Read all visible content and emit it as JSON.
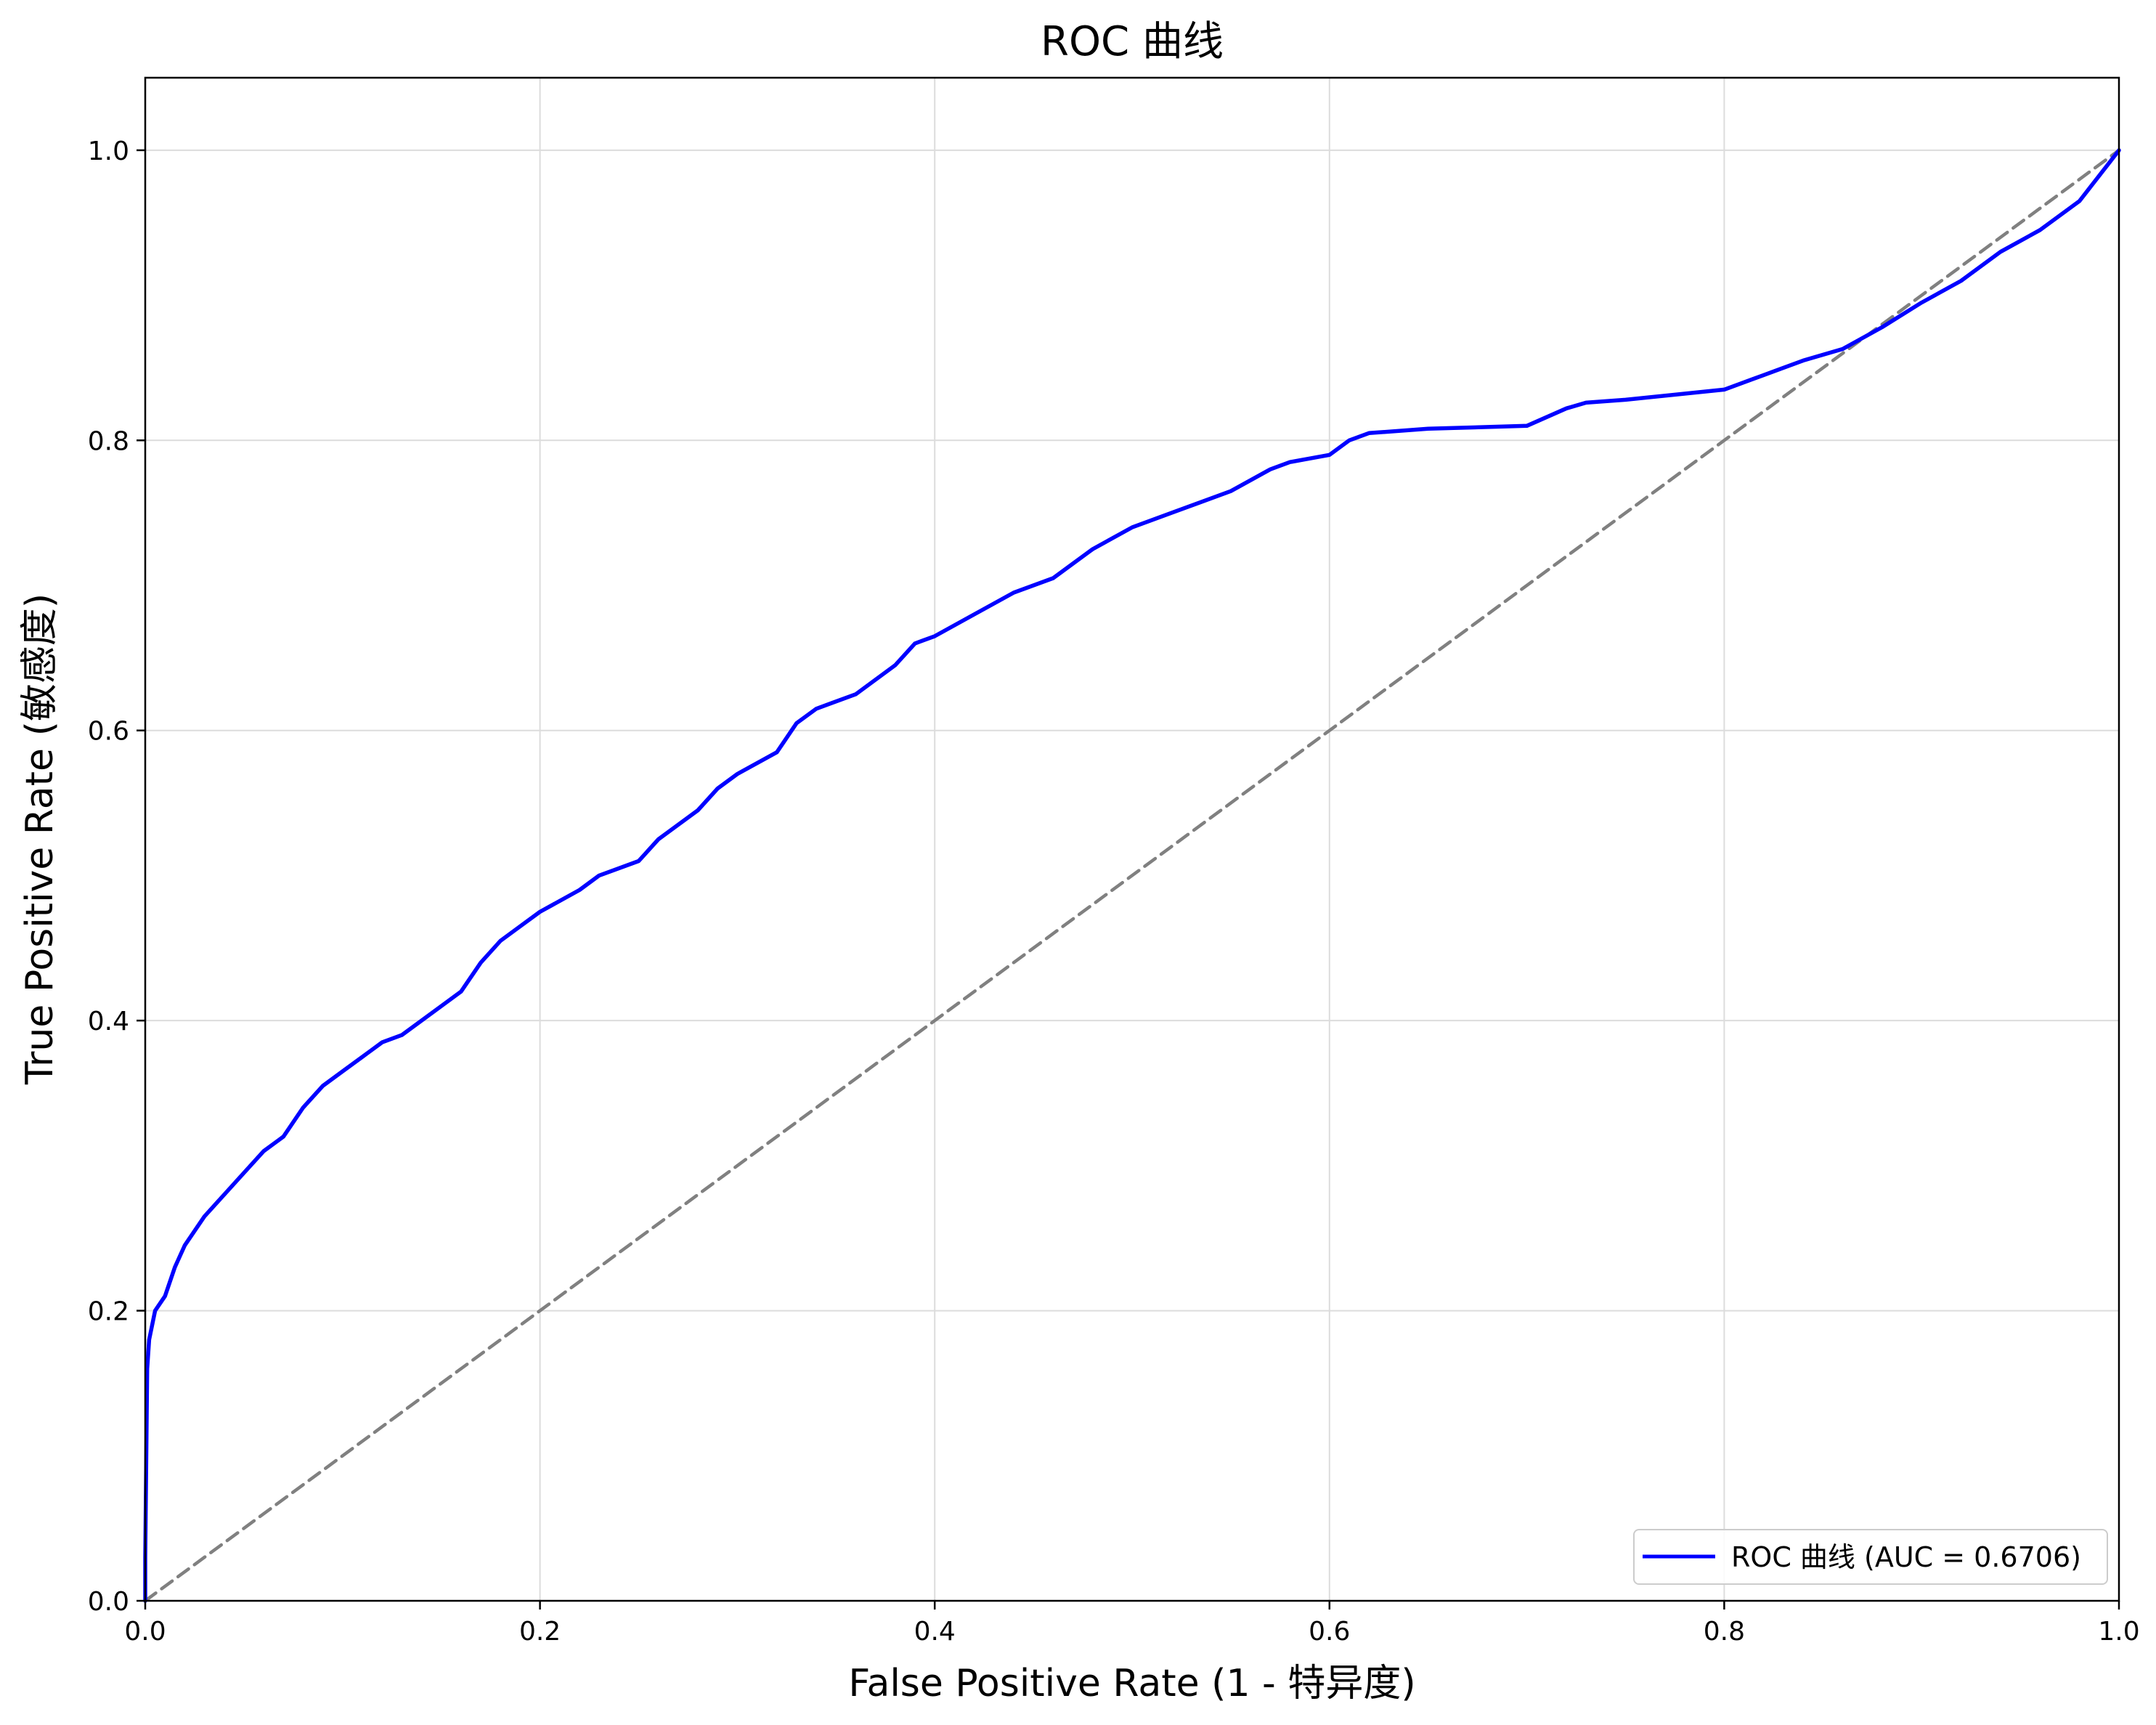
{
  "chart_data": {
    "type": "line",
    "title": "ROC 曲线",
    "xlabel": "False Positive Rate (1 - 特异度)",
    "ylabel": "True Positive Rate (敏感度)",
    "xlim": [
      0,
      1
    ],
    "ylim": [
      0,
      1.05
    ],
    "xticks": [
      "0.0",
      "0.2",
      "0.4",
      "0.6",
      "0.8",
      "1.0"
    ],
    "yticks": [
      "0.0",
      "0.2",
      "0.4",
      "0.6",
      "0.8",
      "1.0"
    ],
    "grid": true,
    "legend_position": "lower-right",
    "series": [
      {
        "name": "ROC 曲线 (AUC = 0.6706)",
        "color": "#0000ff",
        "style": "solid",
        "x": [
          0.0,
          0.0,
          0.001,
          0.002,
          0.005,
          0.01,
          0.015,
          0.02,
          0.03,
          0.04,
          0.05,
          0.06,
          0.07,
          0.08,
          0.09,
          0.1,
          0.11,
          0.12,
          0.13,
          0.15,
          0.16,
          0.17,
          0.18,
          0.19,
          0.2,
          0.22,
          0.23,
          0.25,
          0.26,
          0.28,
          0.29,
          0.3,
          0.32,
          0.33,
          0.34,
          0.36,
          0.38,
          0.39,
          0.4,
          0.42,
          0.44,
          0.46,
          0.47,
          0.48,
          0.5,
          0.52,
          0.55,
          0.57,
          0.58,
          0.6,
          0.61,
          0.62,
          0.65,
          0.7,
          0.72,
          0.73,
          0.75,
          0.8,
          0.82,
          0.84,
          0.86,
          0.88,
          0.9,
          0.92,
          0.94,
          0.96,
          0.98,
          1.0
        ],
        "y": [
          0.0,
          0.03,
          0.16,
          0.18,
          0.2,
          0.21,
          0.23,
          0.245,
          0.265,
          0.28,
          0.295,
          0.31,
          0.32,
          0.34,
          0.355,
          0.365,
          0.375,
          0.385,
          0.39,
          0.41,
          0.42,
          0.44,
          0.455,
          0.465,
          0.475,
          0.49,
          0.5,
          0.51,
          0.525,
          0.545,
          0.56,
          0.57,
          0.585,
          0.605,
          0.615,
          0.625,
          0.645,
          0.66,
          0.665,
          0.68,
          0.695,
          0.705,
          0.715,
          0.725,
          0.74,
          0.75,
          0.765,
          0.78,
          0.785,
          0.79,
          0.8,
          0.805,
          0.808,
          0.81,
          0.822,
          0.826,
          0.828,
          0.835,
          0.845,
          0.855,
          0.863,
          0.878,
          0.895,
          0.91,
          0.93,
          0.945,
          0.965,
          1.0
        ]
      },
      {
        "name": "",
        "color": "#808080",
        "style": "dashed",
        "x": [
          0,
          1
        ],
        "y": [
          0,
          1
        ]
      }
    ]
  }
}
